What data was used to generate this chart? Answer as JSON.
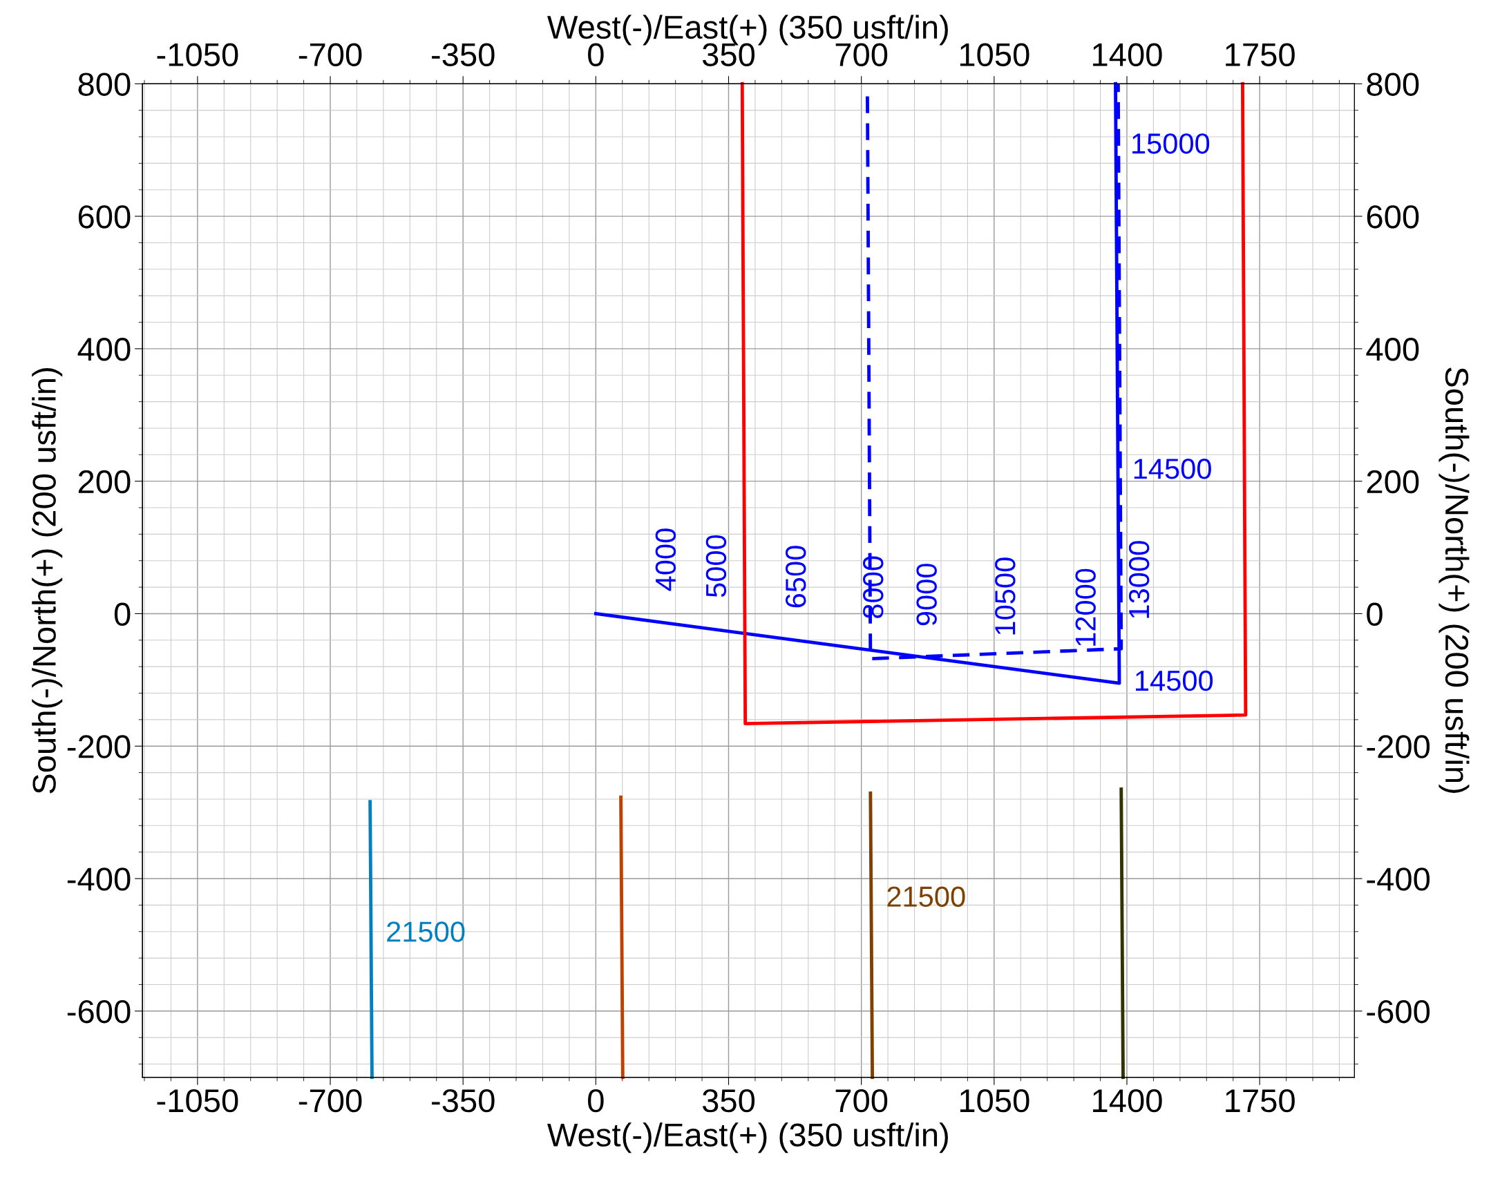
{
  "chart_data": {
    "type": "line",
    "xlabel": "West(-)/East(+) (350 usft/in)",
    "x2label": "West(-)/East(+) (350 usft/in)",
    "ylabel": "South(-)/North(+) (200 usft/in)",
    "y2label": "South(-)/North(+) (200 usft/in)",
    "xlim": [
      -1195,
      2000
    ],
    "xticks": [
      -1050,
      -700,
      -350,
      0,
      350,
      700,
      1050,
      1400,
      1750
    ],
    "x2lim": [
      -1195,
      2000
    ],
    "x2ticks": [
      -1050,
      -700,
      -350,
      0,
      350,
      700,
      1050,
      1400,
      1750
    ],
    "ylim": [
      -700,
      800
    ],
    "yticks": [
      -600,
      -400,
      -200,
      0,
      200,
      400,
      600,
      800
    ],
    "y2lim": [
      -700,
      800
    ],
    "y2ticks": [
      -600,
      -400,
      -200,
      0,
      200,
      400,
      600,
      800
    ],
    "grid": true,
    "marker": "none",
    "series": [
      {
        "color": "#0000ff",
        "line_style": "solid",
        "x": [
          0,
          1380,
          1370
        ],
        "values": [
          0,
          -105,
          800
        ]
      },
      {
        "color": "#0000ff",
        "line_style": "dashed",
        "x": [
          716,
          724,
          1385,
          1377
        ],
        "values": [
          781,
          -68,
          -53,
          800
        ]
      },
      {
        "color": "#ff0000",
        "line_style": "solid",
        "x": [
          386,
          394,
          1713,
          1705
        ],
        "values": [
          800,
          -166,
          -153,
          800
        ]
      },
      {
        "color": "#0080c0",
        "line_style": "solid",
        "x": [
          -595,
          -590
        ],
        "values": [
          -284,
          -700
        ]
      },
      {
        "color": "#c04000",
        "line_style": "solid",
        "x": [
          66,
          71
        ],
        "values": [
          -277,
          -700
        ]
      },
      {
        "color": "#804000",
        "line_style": "solid",
        "x": [
          724,
          729
        ],
        "values": [
          -271,
          -700
        ]
      },
      {
        "color": "#333300",
        "line_style": "solid",
        "x": [
          1385,
          1390
        ],
        "values": [
          -265,
          -700
        ]
      }
    ],
    "annotations": [
      {
        "text": "4000",
        "x": 135,
        "y": -10
      },
      {
        "text": "5000",
        "x": 268,
        "y": -20
      },
      {
        "text": "6500",
        "x": 478,
        "y": -36
      },
      {
        "text": "8000",
        "x": 682,
        "y": -52
      },
      {
        "text": "9000",
        "x": 823,
        "y": -63
      },
      {
        "text": "10500",
        "x": 1030,
        "y": -78
      },
      {
        "text": "12000",
        "x": 1242,
        "y": -95
      },
      {
        "text": "13000",
        "x": 1383,
        "y": -53
      },
      {
        "text": "15000",
        "x": 1371,
        "y": 706
      },
      {
        "text": "14500",
        "x": 1376,
        "y": 215
      },
      {
        "text": "14500",
        "x": 1380,
        "y": -105
      },
      {
        "text": "21500",
        "x": -592,
        "y": -484
      },
      {
        "text": "21500",
        "x": 727,
        "y": -431
      }
    ]
  }
}
